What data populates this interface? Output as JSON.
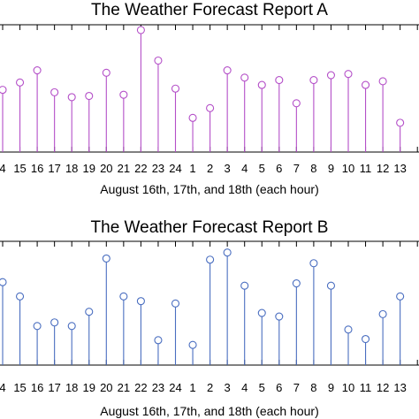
{
  "chart_data": [
    {
      "type": "stem",
      "title": "The Weather Forecast Report A",
      "xlabel": "August 16th, 17th, and 18th (each hour)",
      "ylabel": "",
      "grid": false,
      "legend": "none",
      "marker": "open-circle",
      "color": "#b44fc8",
      "categories": [
        "4",
        "15",
        "16",
        "17",
        "18",
        "19",
        "20",
        "21",
        "22",
        "23",
        "24",
        "1",
        "2",
        "3",
        "4",
        "5",
        "6",
        "7",
        "8",
        "9",
        "10",
        "11",
        "12",
        "13"
      ],
      "values": [
        5.1,
        5.7,
        6.7,
        4.9,
        4.5,
        4.6,
        6.5,
        4.7,
        10.0,
        7.5,
        5.2,
        2.8,
        3.6,
        6.7,
        6.1,
        5.5,
        5.9,
        4.0,
        5.9,
        6.3,
        6.4,
        5.5,
        5.8,
        2.4
      ],
      "ylim": [
        0,
        10
      ]
    },
    {
      "type": "stem",
      "title": "The Weather Forecast Report B",
      "xlabel": "August 16th, 17th, and 18th (each hour)",
      "ylabel": "",
      "grid": false,
      "legend": "none",
      "marker": "open-circle",
      "color": "#4a6ec0",
      "categories": [
        "4",
        "15",
        "16",
        "17",
        "18",
        "19",
        "20",
        "21",
        "22",
        "23",
        "24",
        "1",
        "2",
        "3",
        "4",
        "5",
        "6",
        "7",
        "8",
        "9",
        "10",
        "11",
        "12",
        "13"
      ],
      "values": [
        7.0,
        5.8,
        3.3,
        3.6,
        3.3,
        4.5,
        9.0,
        5.8,
        5.4,
        2.1,
        5.2,
        1.7,
        8.9,
        9.5,
        6.7,
        4.4,
        4.1,
        6.9,
        8.6,
        6.7,
        3.0,
        2.2,
        4.3,
        5.8
      ],
      "ylim": [
        0,
        10
      ]
    }
  ]
}
